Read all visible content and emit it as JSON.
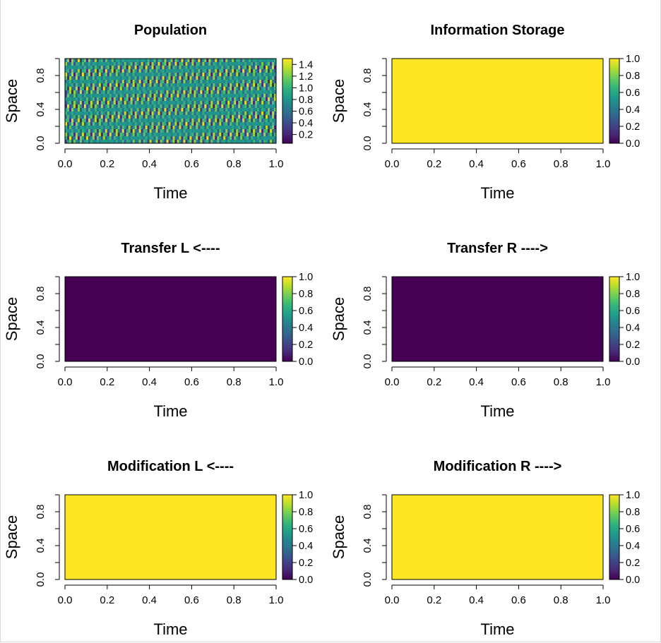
{
  "colors": {
    "viridis": [
      "#440154",
      "#482878",
      "#3e4989",
      "#31688e",
      "#26828e",
      "#1f9e89",
      "#35b779",
      "#6ece58",
      "#b5de2b",
      "#fde725"
    ],
    "axis": "#000000",
    "background": "#ffffff"
  },
  "chart_data": [
    {
      "type": "heatmap",
      "title": "Population",
      "xlabel": "Time",
      "ylabel": "Space",
      "xlim": [
        0,
        1
      ],
      "ylim": [
        0,
        1
      ],
      "x_ticks": [
        "0.0",
        "0.2",
        "0.4",
        "0.6",
        "0.8",
        "1.0"
      ],
      "y_ticks": [
        "0.0",
        "0.4",
        "0.8"
      ],
      "colorbar": {
        "range": [
          0.05,
          1.5
        ],
        "ticks": [
          "0.2",
          "0.4",
          "0.6",
          "0.8",
          "1.0",
          "1.2",
          "1.4"
        ]
      },
      "pattern": "oscillating",
      "pattern_params": {
        "columns": 100,
        "rows": 24,
        "base": 0.8,
        "amplitude": 0.65
      }
    },
    {
      "type": "heatmap",
      "title": "Information Storage",
      "xlabel": "Time",
      "ylabel": "Space",
      "xlim": [
        0,
        1
      ],
      "ylim": [
        0,
        1
      ],
      "x_ticks": [
        "0.0",
        "0.2",
        "0.4",
        "0.6",
        "0.8",
        "1.0"
      ],
      "y_ticks": [
        "0.0",
        "0.4",
        "0.8"
      ],
      "colorbar": {
        "range": [
          0,
          1
        ],
        "ticks": [
          "0.0",
          "0.2",
          "0.4",
          "0.6",
          "0.8",
          "1.0"
        ]
      },
      "constant_value": 1.0
    },
    {
      "type": "heatmap",
      "title": "Transfer L <----",
      "xlabel": "Time",
      "ylabel": "Space",
      "xlim": [
        0,
        1
      ],
      "ylim": [
        0,
        1
      ],
      "x_ticks": [
        "0.0",
        "0.2",
        "0.4",
        "0.6",
        "0.8",
        "1.0"
      ],
      "y_ticks": [
        "0.0",
        "0.4",
        "0.8"
      ],
      "colorbar": {
        "range": [
          0,
          1
        ],
        "ticks": [
          "0.0",
          "0.2",
          "0.4",
          "0.6",
          "0.8",
          "1.0"
        ]
      },
      "constant_value": 0.0
    },
    {
      "type": "heatmap",
      "title": "Transfer R ---->",
      "xlabel": "Time",
      "ylabel": "Space",
      "xlim": [
        0,
        1
      ],
      "ylim": [
        0,
        1
      ],
      "x_ticks": [
        "0.0",
        "0.2",
        "0.4",
        "0.6",
        "0.8",
        "1.0"
      ],
      "y_ticks": [
        "0.0",
        "0.4",
        "0.8"
      ],
      "colorbar": {
        "range": [
          0,
          1
        ],
        "ticks": [
          "0.0",
          "0.2",
          "0.4",
          "0.6",
          "0.8",
          "1.0"
        ]
      },
      "constant_value": 0.0
    },
    {
      "type": "heatmap",
      "title": "Modification L <----",
      "xlabel": "Time",
      "ylabel": "Space",
      "xlim": [
        0,
        1
      ],
      "ylim": [
        0,
        1
      ],
      "x_ticks": [
        "0.0",
        "0.2",
        "0.4",
        "0.6",
        "0.8",
        "1.0"
      ],
      "y_ticks": [
        "0.0",
        "0.4",
        "0.8"
      ],
      "colorbar": {
        "range": [
          0,
          1
        ],
        "ticks": [
          "0.0",
          "0.2",
          "0.4",
          "0.6",
          "0.8",
          "1.0"
        ]
      },
      "constant_value": 1.0
    },
    {
      "type": "heatmap",
      "title": "Modification R ---->",
      "xlabel": "Time",
      "ylabel": "Space",
      "xlim": [
        0,
        1
      ],
      "ylim": [
        0,
        1
      ],
      "x_ticks": [
        "0.0",
        "0.2",
        "0.4",
        "0.6",
        "0.8",
        "1.0"
      ],
      "y_ticks": [
        "0.0",
        "0.4",
        "0.8"
      ],
      "colorbar": {
        "range": [
          0,
          1
        ],
        "ticks": [
          "0.0",
          "0.2",
          "0.4",
          "0.6",
          "0.8",
          "1.0"
        ]
      },
      "constant_value": 1.0
    }
  ]
}
